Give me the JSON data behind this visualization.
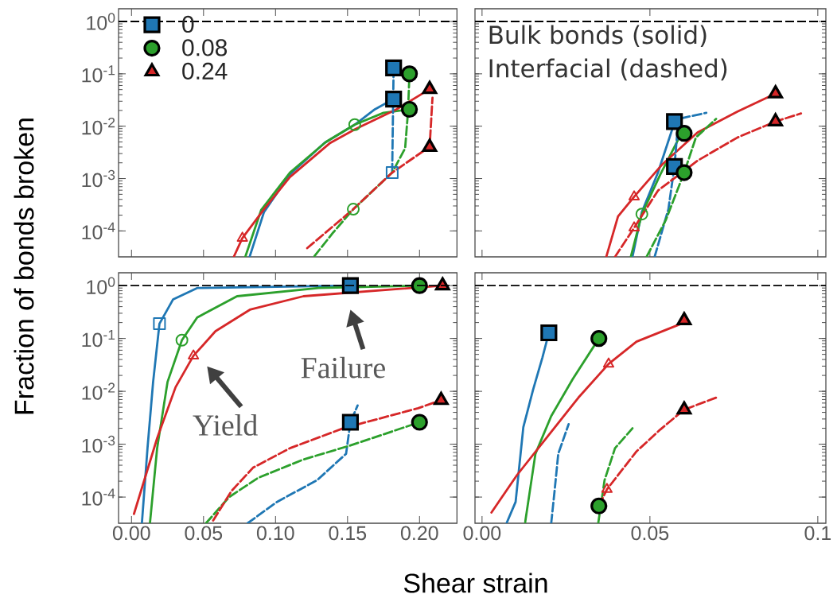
{
  "chart_data": [
    {
      "type": "line",
      "ylabel": "Fraction of bonds broken",
      "log": true,
      "legend": "top left",
      "tick_labels": "y",
      "xlim": [
        -0.009,
        0.226
      ],
      "ylim": [
        3.2e-05,
        1.75
      ],
      "xticks": [
        {
          "value": 0,
          "label": null
        },
        {
          "value": 0.05,
          "label": null
        },
        {
          "value": 0.1,
          "label": null
        },
        {
          "value": 0.15,
          "label": null
        },
        {
          "value": 0.2,
          "label": null
        }
      ],
      "yticks": [
        {
          "value": 0.0001,
          "label": "10$^{-4}$"
        },
        {
          "value": 0.001,
          "label": "10$^{-3}$"
        },
        {
          "value": 0.01,
          "label": "10$^{-2}$"
        },
        {
          "value": 0.1,
          "label": "10$^{-1}$"
        },
        {
          "value": 1,
          "label": "10$^{0}$"
        }
      ],
      "ref_lines": [
        {
          "axis": "y",
          "value": 1,
          "color": "#000000",
          "line_style": "dashed"
        }
      ],
      "series": [
        {
          "line_style": "solid",
          "color": "#1f77b4",
          "x": [
            0.082,
            0.092,
            0.11,
            0.134,
            0.155,
            0.169,
            0.182
          ],
          "values": [
            3.2e-05,
            0.00023,
            0.0012,
            0.0048,
            0.0107,
            0.021,
            0.033
          ]
        },
        {
          "line_style": "solid",
          "color": "#2ca02c",
          "x": [
            0.079,
            0.09,
            0.11,
            0.135,
            0.155,
            0.175,
            0.193
          ],
          "values": [
            3.2e-05,
            0.00025,
            0.0013,
            0.005,
            0.0107,
            0.018,
            0.021
          ]
        },
        {
          "line_style": "solid",
          "color": "#d62728",
          "x": [
            0.071,
            0.077,
            0.092,
            0.11,
            0.138,
            0.155,
            0.184,
            0.207
          ],
          "values": [
            3.2e-05,
            7.3e-05,
            0.00026,
            0.00107,
            0.0048,
            0.0087,
            0.021,
            0.051
          ]
        },
        {
          "line_style": "dashed",
          "color": "#1f77b4",
          "x": [
            0.181,
            0.182
          ],
          "values": [
            0.0013,
            0.13
          ]
        },
        {
          "line_style": "dashed",
          "color": "#2ca02c",
          "x": [
            0.127,
            0.14,
            0.154,
            0.181,
            0.19,
            0.192,
            0.193
          ],
          "values": [
            3.3e-05,
            9.3e-05,
            0.00026,
            0.0013,
            0.0038,
            0.019,
            0.1
          ]
        },
        {
          "line_style": "dashed",
          "color": "#d62728",
          "x": [
            0.122,
            0.154,
            0.181,
            0.203,
            0.207,
            0.209
          ],
          "values": [
            4.7e-05,
            0.00026,
            0.0013,
            0.0034,
            0.004,
            0.035
          ]
        },
        {
          "marker": "square",
          "line_style": "solid",
          "color": "#1f77b4",
          "x": [
            0.181
          ],
          "values": [
            0.0013
          ]
        },
        {
          "marker": "circle",
          "line_style": "solid",
          "color": "#2ca02c",
          "x": [
            0.155
          ],
          "values": [
            0.0107
          ]
        },
        {
          "marker": "circle",
          "line_style": "solid",
          "color": "#2ca02c",
          "x": [
            0.154
          ],
          "values": [
            0.00026
          ]
        },
        {
          "marker": "triangle",
          "line_style": "solid",
          "color": "#d62728",
          "x": [
            0.077
          ],
          "values": [
            7.3e-05
          ]
        },
        {
          "type": "scatter",
          "marker": "square",
          "name": "0",
          "color": "#1f77b4",
          "x": [
            0.182,
            0.182
          ],
          "values": [
            0.13,
            0.033
          ]
        },
        {
          "type": "scatter",
          "marker": "circle",
          "name": "0.08",
          "color": "#2ca02c",
          "x": [
            0.193,
            0.193
          ],
          "values": [
            0.1,
            0.021
          ]
        },
        {
          "type": "scatter",
          "marker": "triangle",
          "name": "0.24",
          "color": "#d62728",
          "x": [
            0.207,
            0.207
          ],
          "values": [
            0.051,
            0.004
          ]
        }
      ]
    },
    {
      "type": "line",
      "log": true,
      "tick_labels": false,
      "xlim": [
        -0.0021,
        0.1024
      ],
      "ylim": [
        3.2e-05,
        1.75
      ],
      "xticks": [
        {
          "value": 0,
          "label": null
        },
        {
          "value": 0.05,
          "label": null
        },
        {
          "value": 0.1,
          "label": null
        }
      ],
      "yticks": [
        {
          "value": 0.0001,
          "label": null
        },
        {
          "value": 0.001,
          "label": null
        },
        {
          "value": 0.01,
          "label": null
        },
        {
          "value": 0.1,
          "label": null
        },
        {
          "value": 1,
          "label": null
        }
      ],
      "ref_lines": [
        {
          "axis": "y",
          "value": 1,
          "color": "#000000",
          "line_style": "dashed"
        }
      ],
      "annotations": [
        "Bulk bonds (solid)",
        "Interfacial (dashed)"
      ],
      "series": [
        {
          "line_style": "solid",
          "color": "#1f77b4",
          "x": [
            0.0448,
            0.0476,
            0.0524,
            0.0571,
            0.0573
          ],
          "values": [
            3.2e-05,
            0.00023,
            0.0013,
            0.0107,
            0.0123
          ]
        },
        {
          "line_style": "solid",
          "color": "#2ca02c",
          "x": [
            0.0443,
            0.0476,
            0.0531,
            0.0595,
            0.0602
          ],
          "values": [
            3.2e-05,
            0.00021,
            0.0012,
            0.0076,
            0.0073
          ]
        },
        {
          "line_style": "solid",
          "color": "#d62728",
          "x": [
            0.037,
            0.0405,
            0.0453,
            0.0538,
            0.0642,
            0.0761,
            0.0874
          ],
          "values": [
            3.2e-05,
            0.00019,
            0.00045,
            0.0019,
            0.0076,
            0.019,
            0.042
          ]
        },
        {
          "line_style": "dashed",
          "color": "#1f77b4",
          "x": [
            0.0514,
            0.0555,
            0.0573,
            0.0585,
            0.0668
          ],
          "values": [
            3.2e-05,
            0.00026,
            0.0017,
            0.0138,
            0.018
          ]
        },
        {
          "line_style": "dashed",
          "color": "#2ca02c",
          "x": [
            0.049,
            0.0547,
            0.0602,
            0.0637,
            0.0697
          ],
          "values": [
            3.2e-05,
            0.00016,
            0.0013,
            0.0061,
            0.0138
          ]
        },
        {
          "line_style": "dashed",
          "color": "#d62728",
          "x": [
            0.0396,
            0.0453,
            0.0524,
            0.0642,
            0.0761,
            0.0874,
            0.095
          ],
          "values": [
            3.2e-05,
            0.000115,
            0.00059,
            0.0022,
            0.0061,
            0.0123,
            0.0175
          ]
        },
        {
          "marker": "circle",
          "line_style": "solid",
          "color": "#2ca02c",
          "x": [
            0.0476
          ],
          "values": [
            0.00021
          ]
        },
        {
          "marker": "triangle",
          "line_style": "solid",
          "color": "#d62728",
          "x": [
            0.0453
          ],
          "values": [
            0.00045
          ]
        },
        {
          "marker": "triangle",
          "line_style": "solid",
          "color": "#d62728",
          "x": [
            0.0453
          ],
          "values": [
            0.000115
          ]
        },
        {
          "type": "scatter",
          "marker": "square",
          "color": "#1f77b4",
          "x": [
            0.0573,
            0.0573
          ],
          "values": [
            0.0123,
            0.0017
          ]
        },
        {
          "type": "scatter",
          "marker": "circle",
          "color": "#2ca02c",
          "x": [
            0.0602,
            0.0602
          ],
          "values": [
            0.0073,
            0.0013
          ]
        },
        {
          "type": "scatter",
          "marker": "triangle",
          "color": "#d62728",
          "x": [
            0.0874,
            0.0874
          ],
          "values": [
            0.042,
            0.0123
          ]
        }
      ]
    },
    {
      "type": "line",
      "xlabel": "Shear strain",
      "log": true,
      "xlim": [
        -0.009,
        0.226
      ],
      "ylim": [
        3.2e-05,
        1.75
      ],
      "xticks": [
        {
          "value": 0,
          "label": "0.00"
        },
        {
          "value": 0.05,
          "label": "0.05"
        },
        {
          "value": 0.1,
          "label": "0.10"
        },
        {
          "value": 0.15,
          "label": "0.15"
        },
        {
          "value": 0.2,
          "label": "0.20"
        }
      ],
      "yticks": [
        {
          "value": 0.0001,
          "label": "10$^{-4}$"
        },
        {
          "value": 0.001,
          "label": "10$^{-3}$"
        },
        {
          "value": 0.01,
          "label": "10$^{-2}$"
        },
        {
          "value": 0.1,
          "label": "10$^{-1}$"
        },
        {
          "value": 1,
          "label": "10$^{0}$"
        }
      ],
      "ref_lines": [
        {
          "axis": "y",
          "value": 1,
          "color": "#000000",
          "line_style": "dashed"
        }
      ],
      "annotations": [
        {
          "text": "Yield",
          "x": 0.043,
          "y": 0.047
        },
        {
          "text": "Failure",
          "x": 0.152,
          "y": 1
        }
      ],
      "series": [
        {
          "line_style": "solid",
          "color": "#1f77b4",
          "x": [
            0.0072,
            0.0111,
            0.015,
            0.0194,
            0.0289,
            0.0456,
            0.152
          ],
          "values": [
            3.2e-05,
            0.00084,
            0.015,
            0.19,
            0.55,
            0.9,
            1
          ]
        },
        {
          "line_style": "solid",
          "color": "#2ca02c",
          "x": [
            0.0128,
            0.0178,
            0.025,
            0.035,
            0.0456,
            0.0733,
            0.13,
            0.2
          ],
          "values": [
            3.2e-05,
            0.00084,
            0.015,
            0.093,
            0.25,
            0.63,
            0.9,
            1
          ]
        },
        {
          "line_style": "solid",
          "color": "#d62728",
          "x": [
            0.0017,
            0.0178,
            0.0306,
            0.043,
            0.0583,
            0.0822,
            0.1194,
            0.216
          ],
          "values": [
            4.8e-05,
            0.0013,
            0.012,
            0.047,
            0.137,
            0.35,
            0.63,
            1
          ]
        },
        {
          "line_style": "dashed",
          "color": "#1f77b4",
          "x": [
            0.0806,
            0.101,
            0.129,
            0.149,
            0.152,
            0.157
          ],
          "values": [
            3.2e-05,
            8.1e-05,
            0.00021,
            0.00066,
            0.0026,
            0.0054
          ]
        },
        {
          "line_style": "dashed",
          "color": "#2ca02c",
          "x": [
            0.0517,
            0.0678,
            0.0878,
            0.119,
            0.151,
            0.2
          ],
          "values": [
            3.2e-05,
            0.0001,
            0.00023,
            0.00051,
            0.00093,
            0.0026
          ]
        },
        {
          "line_style": "dashed",
          "color": "#d62728",
          "x": [
            0.0567,
            0.0694,
            0.0844,
            0.11,
            0.147,
            0.199,
            0.215
          ],
          "values": [
            3.6e-05,
            0.00013,
            0.00036,
            0.00084,
            0.002,
            0.0048,
            0.0068
          ]
        },
        {
          "marker": "square",
          "line_style": "solid",
          "color": "#1f77b4",
          "x": [
            0.0194
          ],
          "values": [
            0.19
          ]
        },
        {
          "marker": "circle",
          "line_style": "solid",
          "color": "#2ca02c",
          "x": [
            0.035
          ],
          "values": [
            0.093
          ]
        },
        {
          "marker": "triangle",
          "line_style": "solid",
          "color": "#d62728",
          "x": [
            0.043
          ],
          "values": [
            0.047
          ]
        },
        {
          "type": "scatter",
          "marker": "square",
          "color": "#1f77b4",
          "x": [
            0.152,
            0.152
          ],
          "values": [
            1,
            0.0026
          ]
        },
        {
          "type": "scatter",
          "marker": "circle",
          "color": "#2ca02c",
          "x": [
            0.2,
            0.2
          ],
          "values": [
            1,
            0.0026
          ]
        },
        {
          "type": "scatter",
          "marker": "triangle",
          "color": "#d62728",
          "x": [
            0.216,
            0.215
          ],
          "values": [
            1,
            0.0068
          ]
        }
      ]
    },
    {
      "type": "line",
      "log": true,
      "tick_labels": "x",
      "xlim": [
        -0.0021,
        0.1024
      ],
      "ylim": [
        3.2e-05,
        1.75
      ],
      "xticks": [
        {
          "value": 0,
          "label": "0.00"
        },
        {
          "value": 0.05,
          "label": "0.05"
        },
        {
          "value": 0.1,
          "label": "0.1"
        }
      ],
      "yticks": [
        {
          "value": 0.0001,
          "label": null
        },
        {
          "value": 0.001,
          "label": null
        },
        {
          "value": 0.01,
          "label": null
        },
        {
          "value": 0.1,
          "label": null
        },
        {
          "value": 1,
          "label": null
        }
      ],
      "ref_lines": [
        {
          "axis": "y",
          "value": 1,
          "color": "#000000",
          "line_style": "dashed"
        }
      ],
      "series": [
        {
          "line_style": "solid",
          "color": "#1f77b4",
          "x": [
            0.0073,
            0.01,
            0.0123,
            0.0152,
            0.018,
            0.0199
          ],
          "values": [
            3.2e-05,
            8.1e-05,
            0.0021,
            0.0107,
            0.044,
            0.128
          ]
        },
        {
          "line_style": "solid",
          "color": "#2ca02c",
          "x": [
            0.0128,
            0.0159,
            0.0206,
            0.027,
            0.0348
          ],
          "values": [
            3.2e-05,
            0.00066,
            0.0034,
            0.017,
            0.1
          ]
        },
        {
          "line_style": "solid",
          "color": "#d62728",
          "x": [
            0.0028,
            0.0104,
            0.0199,
            0.0287,
            0.0377,
            0.046,
            0.0602
          ],
          "values": [
            5.1e-05,
            0.00026,
            0.0015,
            0.0076,
            0.033,
            0.087,
            0.2
          ]
        },
        {
          "line_style": "dashed",
          "color": "#1f77b4",
          "x": [
            0.0206,
            0.0216,
            0.0227,
            0.0258
          ],
          "values": [
            3.2e-05,
            0.00013,
            0.00066,
            0.0024
          ]
        },
        {
          "line_style": "dashed",
          "color": "#2ca02c",
          "x": [
            0.0346,
            0.0365,
            0.0396,
            0.0448
          ],
          "values": [
            3.2e-05,
            0.00021,
            0.00084,
            0.002
          ]
        },
        {
          "line_style": "dashed",
          "color": "#d62728",
          "x": [
            0.0348,
            0.0372,
            0.046,
            0.0531,
            0.0602,
            0.0697
          ],
          "values": [
            6.8e-05,
            0.00014,
            0.00073,
            0.0019,
            0.0045,
            0.0076
          ]
        },
        {
          "marker": "triangle",
          "line_style": "solid",
          "color": "#d62728",
          "x": [
            0.0377
          ],
          "values": [
            0.033
          ]
        },
        {
          "marker": "triangle",
          "line_style": "solid",
          "color": "#d62728",
          "x": [
            0.0372
          ],
          "values": [
            0.00014
          ]
        },
        {
          "type": "scatter",
          "marker": "square",
          "color": "#1f77b4",
          "x": [
            0.0199
          ],
          "values": [
            0.128
          ]
        },
        {
          "type": "scatter",
          "marker": "circle",
          "color": "#2ca02c",
          "x": [
            0.0348,
            0.0348
          ],
          "values": [
            0.1,
            6.8e-05
          ]
        },
        {
          "type": "scatter",
          "marker": "triangle",
          "color": "#d62728",
          "x": [
            0.0602,
            0.0602
          ],
          "values": [
            0.22,
            0.0045
          ]
        }
      ]
    }
  ]
}
